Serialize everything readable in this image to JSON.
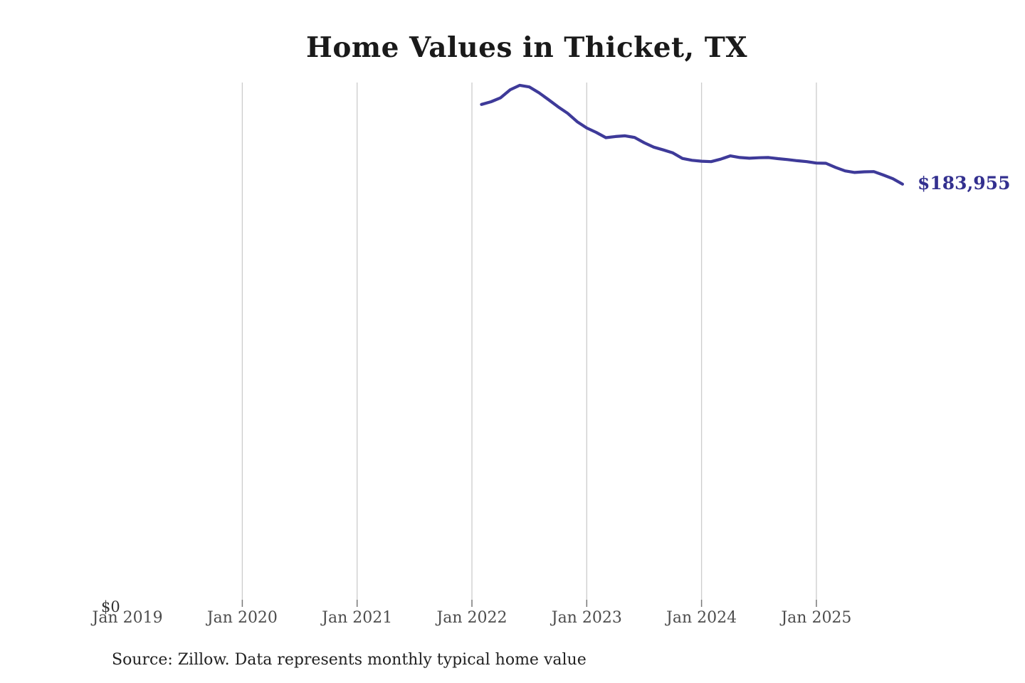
{
  "title": "Home Values in Thicket, TX",
  "source_note": "Source: Zillow. Data represents monthly typical home value",
  "y_axis": {
    "zero_label": "$0"
  },
  "colors": {
    "background": "#ffffff",
    "line": "#3e3a99",
    "latest_value_label": "#33308f",
    "title": "#1a1a1a",
    "axis_label": "#4d4d4d",
    "gridline": "#cccccc",
    "tick": "#777777",
    "source": "#222222"
  },
  "chart_data": {
    "type": "line",
    "title": "Home Values in Thicket, TX",
    "xlabel": "",
    "ylabel": "",
    "ylim": [
      0,
      230000
    ],
    "grid": "vertical-only",
    "legend": "none",
    "line_color": "#3e3a99",
    "last_value_label": "$183,955",
    "x_ticks": [
      {
        "label": "Jan 2019",
        "year": 2019,
        "gridline": false
      },
      {
        "label": "Jan 2020",
        "year": 2020,
        "gridline": true
      },
      {
        "label": "Jan 2021",
        "year": 2021,
        "gridline": true
      },
      {
        "label": "Jan 2022",
        "year": 2022,
        "gridline": true
      },
      {
        "label": "Jan 2023",
        "year": 2023,
        "gridline": true
      },
      {
        "label": "Jan 2024",
        "year": 2024,
        "gridline": true
      },
      {
        "label": "Jan 2025",
        "year": 2025,
        "gridline": true
      }
    ],
    "x": [
      "2022-02",
      "2022-03",
      "2022-04",
      "2022-05",
      "2022-06",
      "2022-07",
      "2022-08",
      "2022-09",
      "2022-10",
      "2022-11",
      "2022-12",
      "2023-01",
      "2023-02",
      "2023-03",
      "2023-04",
      "2023-05",
      "2023-06",
      "2023-07",
      "2023-08",
      "2023-09",
      "2023-10",
      "2023-11",
      "2023-12",
      "2024-01",
      "2024-02",
      "2024-03",
      "2024-04",
      "2024-05",
      "2024-06",
      "2024-07",
      "2024-08",
      "2024-09",
      "2024-10",
      "2024-11",
      "2024-12",
      "2025-01",
      "2025-02",
      "2025-03",
      "2025-04",
      "2025-05",
      "2025-06",
      "2025-07",
      "2025-08",
      "2025-09",
      "2025-10"
    ],
    "values": [
      218500,
      219700,
      221400,
      224900,
      226800,
      226100,
      223600,
      220600,
      217500,
      214700,
      211000,
      208300,
      206400,
      204100,
      204600,
      204900,
      204200,
      201900,
      200000,
      198800,
      197500,
      195100,
      194300,
      193900,
      193700,
      194800,
      196200,
      195500,
      195200,
      195400,
      195500,
      195000,
      194600,
      194100,
      193700,
      193100,
      193000,
      191200,
      189700,
      189000,
      189300,
      189400,
      187900,
      186300,
      183955
    ]
  }
}
